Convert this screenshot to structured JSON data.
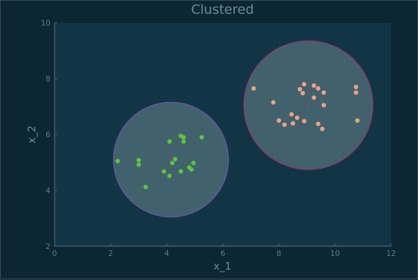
{
  "chart_data": {
    "type": "scatter",
    "title": "Clustered",
    "xlabel": "x_1",
    "ylabel": "x_2",
    "xlim": [
      0,
      12
    ],
    "ylim": [
      2,
      10
    ],
    "xticks": [
      0,
      2,
      4,
      6,
      8,
      10,
      12
    ],
    "yticks": [
      2,
      4,
      6,
      8,
      10
    ],
    "grid": false,
    "colors": {
      "background": "#0d2633",
      "plot_area": "#123545",
      "axis": "#4e6a75",
      "circle_fill": "#4a6a74",
      "cluster_1": "#5dc63a",
      "cluster_2": "#f0a183",
      "cluster_1_boundary": "#6a55a8",
      "cluster_2_boundary": "#9a2f6e",
      "center_marker": "#b0307a"
    },
    "clusters": [
      {
        "center": [
          4.15,
          5.1
        ],
        "radius": 2.05,
        "points": [
          [
            2.25,
            5.05
          ],
          [
            3.0,
            5.08
          ],
          [
            3.0,
            4.92
          ],
          [
            3.25,
            4.12
          ],
          [
            3.9,
            4.68
          ],
          [
            4.1,
            4.52
          ],
          [
            4.1,
            5.75
          ],
          [
            4.2,
            4.98
          ],
          [
            4.3,
            5.12
          ],
          [
            4.5,
            4.68
          ],
          [
            4.5,
            5.95
          ],
          [
            4.6,
            5.75
          ],
          [
            4.6,
            5.9
          ],
          [
            4.8,
            4.82
          ],
          [
            4.88,
            4.75
          ],
          [
            4.95,
            4.98
          ],
          [
            5.25,
            5.9
          ]
        ]
      },
      {
        "center": [
          9.05,
          7.05
        ],
        "radius": 2.3,
        "points": [
          [
            7.1,
            7.65
          ],
          [
            7.8,
            7.15
          ],
          [
            8.0,
            6.5
          ],
          [
            8.2,
            6.35
          ],
          [
            8.45,
            6.72
          ],
          [
            8.5,
            6.4
          ],
          [
            8.65,
            6.6
          ],
          [
            8.75,
            7.62
          ],
          [
            8.85,
            7.48
          ],
          [
            8.9,
            7.8
          ],
          [
            8.9,
            6.48
          ],
          [
            9.25,
            7.75
          ],
          [
            9.25,
            7.32
          ],
          [
            9.4,
            7.65
          ],
          [
            9.4,
            6.38
          ],
          [
            9.55,
            6.2
          ],
          [
            9.6,
            7.5
          ],
          [
            9.6,
            7.05
          ],
          [
            10.75,
            7.7
          ],
          [
            10.75,
            7.5
          ],
          [
            10.8,
            6.5
          ]
        ]
      }
    ]
  }
}
